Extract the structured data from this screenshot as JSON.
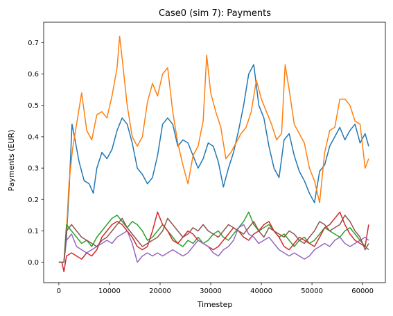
{
  "chart_data": {
    "type": "line",
    "title": "Case0 (sim 7): Payments",
    "xlabel": "Timestep",
    "ylabel": "Payments (EUR)",
    "xlim": [
      -3000,
      64500
    ],
    "ylim": [
      -0.065,
      0.765
    ],
    "xticks": [
      0,
      10000,
      20000,
      30000,
      40000,
      50000,
      60000
    ],
    "xtick_labels": [
      "0",
      "10000",
      "20000",
      "30000",
      "40000",
      "50000",
      "60000"
    ],
    "yticks": [
      0.0,
      0.1,
      0.2,
      0.3,
      0.4,
      0.5,
      0.6,
      0.7
    ],
    "ytick_labels": [
      "0.0",
      "0.1",
      "0.2",
      "0.3",
      "0.4",
      "0.5",
      "0.6",
      "0.7"
    ],
    "grid": false,
    "series": [
      {
        "color": "#1f77b4",
        "x": [
          0,
          1000,
          1500,
          2000,
          2600,
          3200,
          4000,
          5000,
          6000,
          6800,
          7500,
          8500,
          9500,
          10500,
          11500,
          12500,
          13500,
          14500,
          15500,
          16500,
          17500,
          18500,
          19500,
          20500,
          21500,
          22500,
          23500,
          24500,
          25500,
          26500,
          27500,
          28500,
          29500,
          30500,
          31500,
          32500,
          33500,
          34500,
          35500,
          36500,
          37500,
          38500,
          39500,
          40500,
          41500,
          42500,
          43500,
          44500,
          45500,
          46500,
          47500,
          48500,
          49500,
          50500,
          51500,
          52500,
          53500,
          54500,
          55500,
          56500,
          57500,
          58500,
          59500,
          60500,
          61200
        ],
        "y": [
          0.0,
          0.0,
          0.08,
          0.22,
          0.44,
          0.39,
          0.32,
          0.26,
          0.25,
          0.22,
          0.3,
          0.35,
          0.33,
          0.36,
          0.42,
          0.46,
          0.44,
          0.38,
          0.3,
          0.28,
          0.25,
          0.27,
          0.34,
          0.44,
          0.46,
          0.44,
          0.37,
          0.39,
          0.38,
          0.34,
          0.3,
          0.33,
          0.38,
          0.37,
          0.32,
          0.24,
          0.3,
          0.35,
          0.42,
          0.5,
          0.6,
          0.63,
          0.5,
          0.46,
          0.37,
          0.3,
          0.27,
          0.39,
          0.41,
          0.34,
          0.29,
          0.26,
          0.22,
          0.19,
          0.29,
          0.31,
          0.37,
          0.4,
          0.43,
          0.39,
          0.42,
          0.44,
          0.38,
          0.41,
          0.37
        ]
      },
      {
        "color": "#ff7f0e",
        "x": [
          0,
          1000,
          1500,
          2000,
          2700,
          3500,
          4500,
          5500,
          6500,
          7500,
          8500,
          9500,
          10500,
          11500,
          12000,
          12500,
          13500,
          14500,
          15500,
          16500,
          17500,
          18500,
          19500,
          20500,
          21500,
          22500,
          23500,
          24500,
          25500,
          26500,
          27500,
          28500,
          29200,
          30000,
          31000,
          32000,
          33000,
          34000,
          35000,
          36000,
          37000,
          38000,
          39000,
          40000,
          41000,
          42000,
          43000,
          44000,
          44700,
          45500,
          46500,
          47500,
          48500,
          49500,
          50500,
          51500,
          52500,
          53500,
          54500,
          55500,
          56500,
          57500,
          58500,
          59500,
          60500,
          61200
        ],
        "y": [
          0.0,
          0.0,
          0.1,
          0.25,
          0.36,
          0.44,
          0.54,
          0.42,
          0.39,
          0.47,
          0.48,
          0.46,
          0.53,
          0.62,
          0.72,
          0.65,
          0.5,
          0.4,
          0.37,
          0.4,
          0.51,
          0.57,
          0.53,
          0.6,
          0.62,
          0.48,
          0.38,
          0.31,
          0.25,
          0.34,
          0.37,
          0.45,
          0.66,
          0.54,
          0.48,
          0.43,
          0.33,
          0.35,
          0.38,
          0.41,
          0.43,
          0.48,
          0.58,
          0.52,
          0.48,
          0.44,
          0.39,
          0.41,
          0.63,
          0.55,
          0.44,
          0.41,
          0.38,
          0.3,
          0.26,
          0.19,
          0.35,
          0.42,
          0.43,
          0.52,
          0.52,
          0.5,
          0.45,
          0.44,
          0.3,
          0.33
        ]
      },
      {
        "color": "#2ca02c",
        "x": [
          0,
          1000,
          1500,
          2500,
          3500,
          4500,
          5500,
          6500,
          7500,
          8500,
          9500,
          10500,
          11500,
          12500,
          13500,
          14500,
          15500,
          16500,
          17500,
          18500,
          19500,
          20500,
          21500,
          22500,
          23500,
          24500,
          25500,
          26500,
          27500,
          28500,
          29500,
          30500,
          31500,
          32500,
          33500,
          34500,
          35500,
          36500,
          37500,
          38500,
          39500,
          40500,
          41500,
          42500,
          43500,
          44500,
          45500,
          46500,
          47500,
          48500,
          49500,
          50500,
          51500,
          52500,
          53500,
          54500,
          55500,
          56500,
          57500,
          58500,
          59500,
          60500,
          61200
        ],
        "y": [
          0.0,
          0.0,
          0.12,
          0.1,
          0.08,
          0.06,
          0.07,
          0.05,
          0.08,
          0.1,
          0.12,
          0.14,
          0.15,
          0.13,
          0.11,
          0.13,
          0.12,
          0.1,
          0.07,
          0.08,
          0.1,
          0.12,
          0.1,
          0.08,
          0.06,
          0.05,
          0.07,
          0.06,
          0.08,
          0.06,
          0.07,
          0.09,
          0.1,
          0.08,
          0.07,
          0.09,
          0.11,
          0.13,
          0.16,
          0.12,
          0.1,
          0.11,
          0.12,
          0.1,
          0.08,
          0.09,
          0.07,
          0.05,
          0.07,
          0.08,
          0.06,
          0.07,
          0.09,
          0.11,
          0.1,
          0.09,
          0.08,
          0.1,
          0.11,
          0.09,
          0.07,
          0.05,
          0.04
        ]
      },
      {
        "color": "#d62728",
        "x": [
          0,
          600,
          1000,
          1500,
          2500,
          3500,
          4500,
          5500,
          6500,
          7500,
          8500,
          9500,
          10500,
          11500,
          12500,
          13500,
          14500,
          15500,
          16500,
          17500,
          18500,
          19500,
          20500,
          21500,
          22500,
          23500,
          24500,
          25500,
          26500,
          27500,
          28500,
          29500,
          30500,
          31500,
          32500,
          33500,
          34500,
          35500,
          36500,
          37500,
          38500,
          39500,
          40500,
          41500,
          42500,
          43500,
          44500,
          45500,
          46500,
          47500,
          48500,
          49500,
          50500,
          51500,
          52500,
          53500,
          54500,
          55500,
          56500,
          57500,
          58500,
          59500,
          60500,
          61200
        ],
        "y": [
          0.0,
          0.0,
          -0.03,
          0.02,
          0.03,
          0.02,
          0.01,
          0.03,
          0.02,
          0.04,
          0.08,
          0.1,
          0.12,
          0.13,
          0.12,
          0.1,
          0.08,
          0.05,
          0.04,
          0.05,
          0.1,
          0.16,
          0.12,
          0.1,
          0.07,
          0.06,
          0.08,
          0.1,
          0.09,
          0.07,
          0.06,
          0.05,
          0.04,
          0.05,
          0.07,
          0.09,
          0.11,
          0.1,
          0.08,
          0.07,
          0.09,
          0.1,
          0.12,
          0.13,
          0.1,
          0.08,
          0.05,
          0.04,
          0.06,
          0.08,
          0.07,
          0.06,
          0.05,
          0.08,
          0.11,
          0.12,
          0.14,
          0.16,
          0.12,
          0.09,
          0.07,
          0.06,
          0.05,
          0.12
        ]
      },
      {
        "color": "#9467bd",
        "x": [
          0,
          1000,
          1500,
          2500,
          3500,
          4500,
          5500,
          6500,
          7500,
          8500,
          9500,
          10500,
          11500,
          12500,
          13500,
          14500,
          15500,
          16500,
          17500,
          18500,
          19500,
          20500,
          21500,
          22500,
          23500,
          24500,
          25500,
          26500,
          27500,
          28500,
          29500,
          30500,
          31500,
          32500,
          33500,
          34500,
          35500,
          36500,
          37500,
          38500,
          39500,
          40500,
          41500,
          42500,
          43500,
          44500,
          45500,
          46500,
          47500,
          48500,
          49500,
          50500,
          51500,
          52500,
          53500,
          54500,
          55500,
          56500,
          57500,
          58500,
          59500,
          60500,
          61200
        ],
        "y": [
          0.0,
          0.0,
          0.07,
          0.09,
          0.05,
          0.04,
          0.03,
          0.04,
          0.05,
          0.06,
          0.07,
          0.06,
          0.08,
          0.09,
          0.1,
          0.06,
          0.0,
          0.02,
          0.03,
          0.02,
          0.03,
          0.02,
          0.03,
          0.04,
          0.03,
          0.02,
          0.03,
          0.05,
          0.07,
          0.06,
          0.05,
          0.03,
          0.02,
          0.04,
          0.05,
          0.07,
          0.11,
          0.12,
          0.09,
          0.08,
          0.06,
          0.07,
          0.08,
          0.06,
          0.04,
          0.03,
          0.02,
          0.03,
          0.02,
          0.01,
          0.02,
          0.04,
          0.05,
          0.06,
          0.05,
          0.07,
          0.08,
          0.06,
          0.05,
          0.06,
          0.07,
          0.08,
          0.07
        ]
      },
      {
        "color": "#8c564b",
        "x": [
          0,
          1000,
          1500,
          2500,
          3500,
          4500,
          5500,
          6500,
          7500,
          8500,
          9500,
          10500,
          11500,
          12500,
          13500,
          14500,
          15500,
          16500,
          17500,
          18500,
          19500,
          20500,
          21500,
          22500,
          23500,
          24500,
          25500,
          26500,
          27500,
          28500,
          29500,
          30500,
          31500,
          32500,
          33500,
          34500,
          35500,
          36500,
          37500,
          38500,
          39500,
          40500,
          41500,
          42500,
          43500,
          44500,
          45500,
          46500,
          47500,
          48500,
          49500,
          50500,
          51500,
          52500,
          53500,
          54500,
          55500,
          56500,
          57500,
          58500,
          59500,
          60500,
          61200
        ],
        "y": [
          0.0,
          0.0,
          0.1,
          0.12,
          0.1,
          0.08,
          0.07,
          0.06,
          0.05,
          0.07,
          0.08,
          0.1,
          0.12,
          0.14,
          0.11,
          0.09,
          0.07,
          0.05,
          0.06,
          0.07,
          0.08,
          0.1,
          0.14,
          0.12,
          0.1,
          0.08,
          0.09,
          0.11,
          0.1,
          0.12,
          0.1,
          0.09,
          0.08,
          0.1,
          0.12,
          0.11,
          0.1,
          0.09,
          0.11,
          0.13,
          0.1,
          0.08,
          0.11,
          0.1,
          0.09,
          0.08,
          0.1,
          0.09,
          0.07,
          0.06,
          0.08,
          0.1,
          0.13,
          0.12,
          0.1,
          0.11,
          0.12,
          0.15,
          0.13,
          0.1,
          0.08,
          0.04,
          0.06
        ]
      }
    ]
  }
}
